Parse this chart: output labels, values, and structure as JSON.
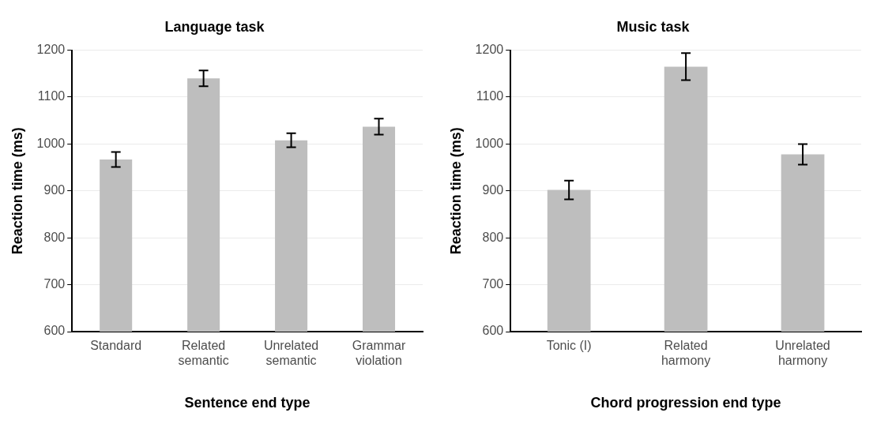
{
  "chart_data": [
    {
      "type": "bar",
      "title": "Language task",
      "xlabel": "Sentence end type",
      "ylabel": "Reaction time (ms)",
      "categories": [
        "Standard",
        "Related semantic",
        "Unrelated semantic",
        "Grammar violation"
      ],
      "values": [
        967,
        1140,
        1008,
        1037
      ],
      "errors": [
        16,
        17,
        15,
        17
      ],
      "color": "#bebebe",
      "ylim": [
        600,
        1200
      ],
      "yticks": [
        600,
        700,
        800,
        900,
        1000,
        1100,
        1200
      ],
      "grid": "y"
    },
    {
      "type": "bar",
      "title": "Music task",
      "xlabel": "Chord progression end type",
      "ylabel": "Reaction time (ms)",
      "categories": [
        "Tonic (I)",
        "Related harmony",
        "Unrelated harmony"
      ],
      "values": [
        902,
        1165,
        978
      ],
      "errors": [
        20,
        29,
        22
      ],
      "color": "#bebebe",
      "ylim": [
        600,
        1200
      ],
      "yticks": [
        600,
        700,
        800,
        900,
        1000,
        1100,
        1200
      ],
      "grid": "y"
    }
  ]
}
